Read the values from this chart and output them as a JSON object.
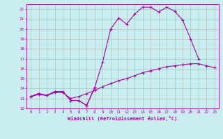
{
  "xlabel": "Windchill (Refroidissement éolien,°C)",
  "bg_color": "#c8eef0",
  "grid_color": "#b0b0b0",
  "line_color": "#aa00aa",
  "xlim": [
    -0.5,
    23.5
  ],
  "ylim": [
    12,
    22.5
  ],
  "yticks": [
    12,
    13,
    14,
    15,
    16,
    17,
    18,
    19,
    20,
    21,
    22
  ],
  "xticks": [
    0,
    1,
    2,
    3,
    4,
    5,
    6,
    7,
    8,
    9,
    10,
    11,
    12,
    13,
    14,
    15,
    16,
    17,
    18,
    19,
    20,
    21,
    22,
    23
  ],
  "line1_x": [
    0,
    1,
    2,
    3,
    4,
    5,
    6,
    7,
    8
  ],
  "line1_y": [
    13.2,
    13.5,
    13.3,
    13.7,
    13.7,
    12.8,
    12.8,
    12.3,
    14.1
  ],
  "line2_x": [
    0,
    1,
    2,
    3,
    4,
    5,
    6,
    7,
    8,
    9,
    10,
    11,
    12,
    13,
    14,
    15,
    16,
    17,
    18,
    19,
    20,
    21
  ],
  "line2_y": [
    13.2,
    13.5,
    13.3,
    13.7,
    13.7,
    12.8,
    12.8,
    12.3,
    14.1,
    16.7,
    20.0,
    21.1,
    20.5,
    21.5,
    22.2,
    22.2,
    21.7,
    22.2,
    21.8,
    20.9,
    19.0,
    17.0
  ],
  "line3_x": [
    0,
    1,
    2,
    3,
    4,
    5,
    6,
    7,
    8,
    9,
    10,
    11,
    12,
    13,
    14,
    15,
    16,
    17,
    18,
    19,
    20,
    21,
    22,
    23
  ],
  "line3_y": [
    13.2,
    13.4,
    13.3,
    13.6,
    13.6,
    13.0,
    13.2,
    13.5,
    13.8,
    14.2,
    14.5,
    14.8,
    15.0,
    15.3,
    15.6,
    15.8,
    16.0,
    16.2,
    16.3,
    16.4,
    16.5,
    16.5,
    16.3,
    16.1
  ],
  "marker": "+",
  "markersize": 3,
  "linewidth": 0.8
}
